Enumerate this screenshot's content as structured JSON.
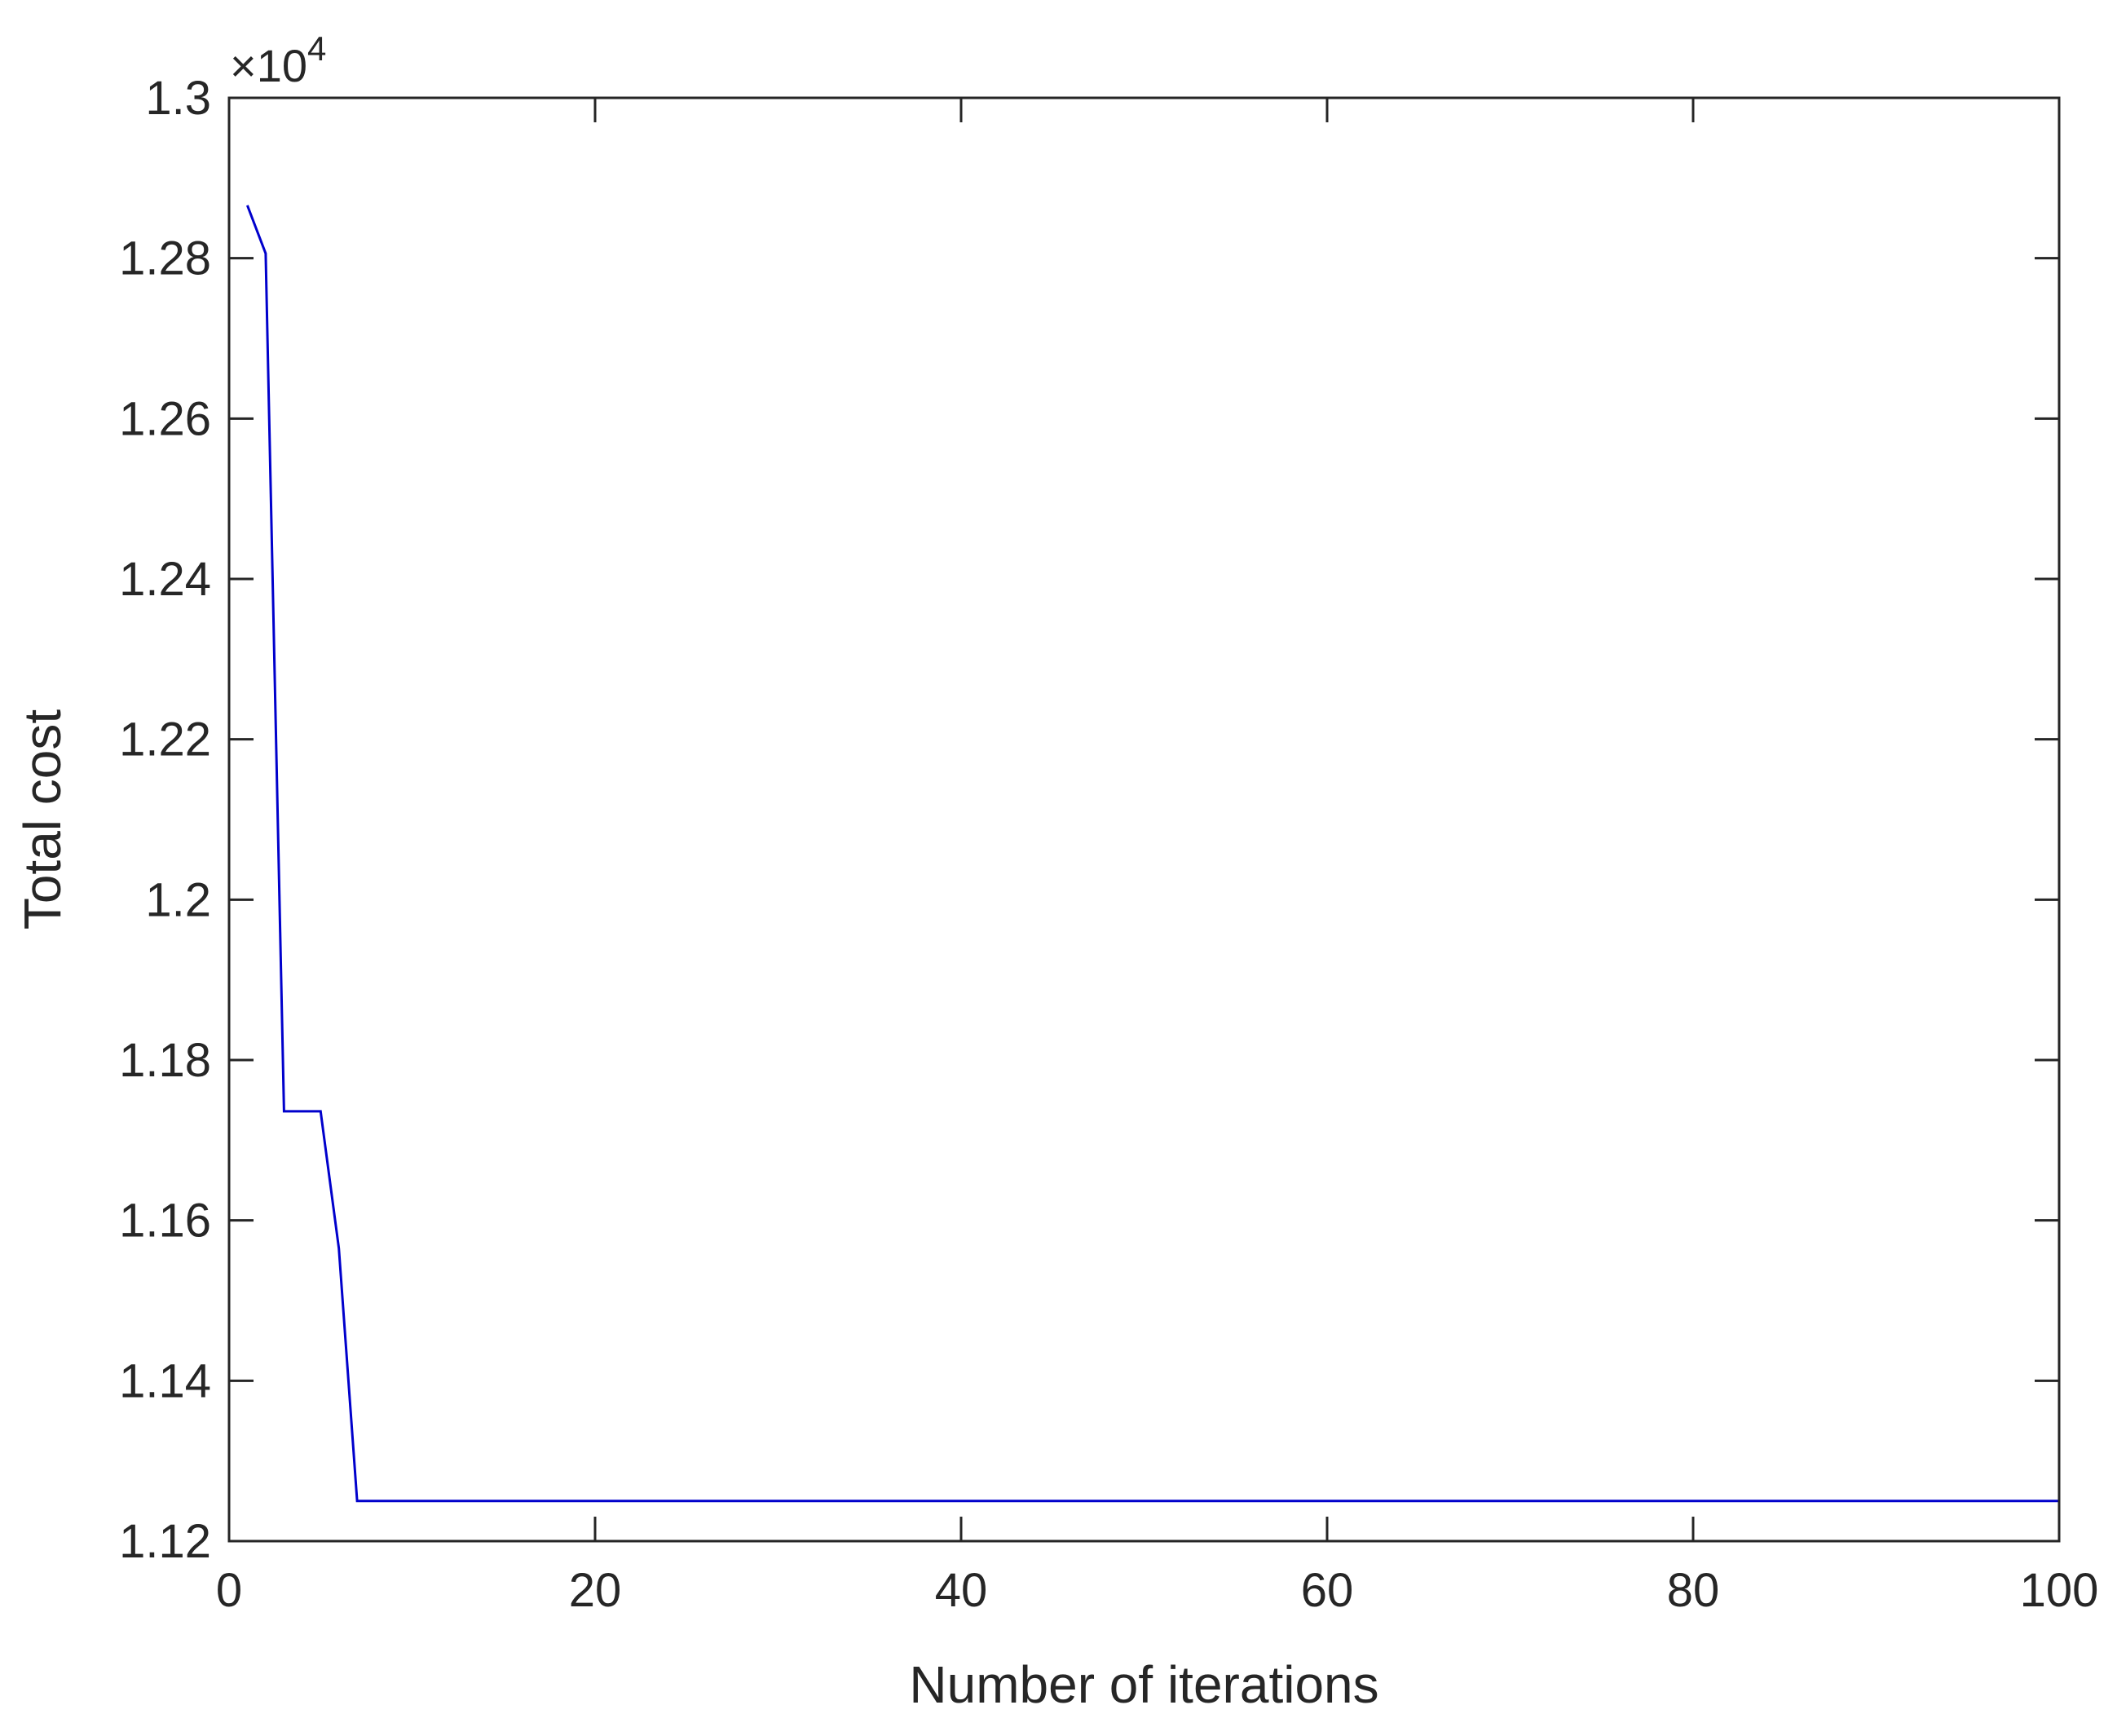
{
  "chart_data": {
    "type": "line",
    "title": "",
    "xlabel": "Number of iterations",
    "ylabel": "Total cost",
    "xlim": [
      0,
      100
    ],
    "ylim": [
      1.12,
      1.3
    ],
    "y_scale_factor": "×10",
    "y_scale_exponent": "4",
    "x_ticks": [
      0,
      20,
      40,
      60,
      80,
      100
    ],
    "x_tick_labels": [
      "0",
      "20",
      "40",
      "60",
      "80",
      "100"
    ],
    "y_ticks": [
      1.12,
      1.14,
      1.16,
      1.18,
      1.2,
      1.22,
      1.24,
      1.26,
      1.28,
      1.3
    ],
    "y_tick_labels": [
      "1.12",
      "1.14",
      "1.16",
      "1.18",
      "1.2",
      "1.22",
      "1.24",
      "1.26",
      "1.28",
      "1.3"
    ],
    "grid": false,
    "series": [
      {
        "color": "#0000cc",
        "x": [
          1,
          2,
          3,
          4,
          5,
          6,
          7,
          8,
          9,
          10,
          20,
          30,
          40,
          50,
          60,
          70,
          80,
          90,
          100
        ],
        "y": [
          1.2866,
          1.2806,
          1.1736,
          1.1736,
          1.1736,
          1.1565,
          1.125,
          1.125,
          1.125,
          1.125,
          1.125,
          1.125,
          1.125,
          1.125,
          1.125,
          1.125,
          1.125,
          1.125,
          1.125
        ]
      }
    ]
  }
}
